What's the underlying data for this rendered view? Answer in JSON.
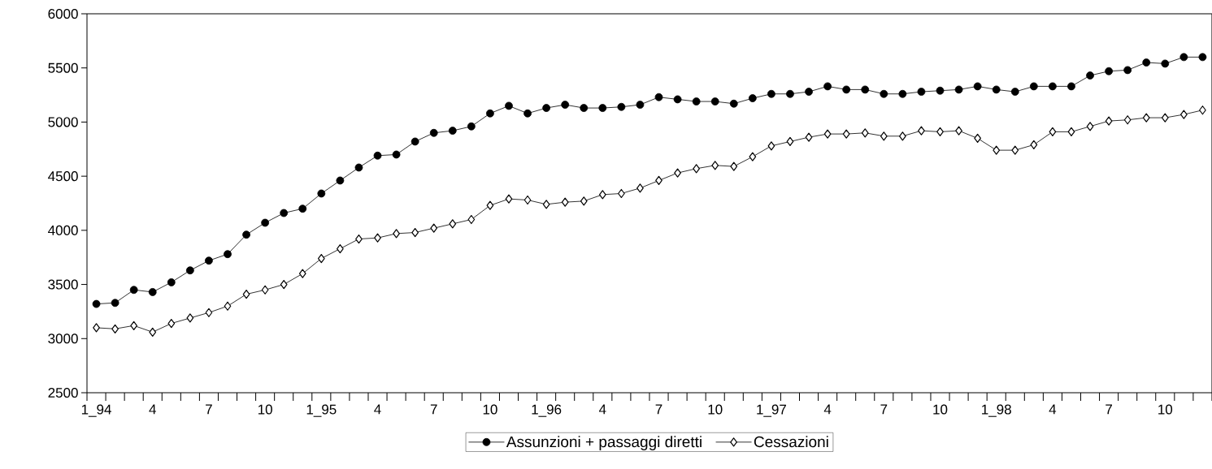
{
  "chart_data": {
    "type": "line",
    "categories": [
      "1_94",
      null,
      null,
      "4",
      null,
      null,
      "7",
      null,
      null,
      "10",
      null,
      null,
      "1_95",
      null,
      null,
      "4",
      null,
      null,
      "7",
      null,
      null,
      "10",
      null,
      null,
      "1_96",
      null,
      null,
      "4",
      null,
      null,
      "7",
      null,
      null,
      "10",
      null,
      null,
      "1_97",
      null,
      null,
      "4",
      null,
      null,
      "7",
      null,
      null,
      "10",
      null,
      null,
      "1_98",
      null,
      null,
      "4",
      null,
      null,
      "7",
      null,
      null,
      "10",
      null,
      null
    ],
    "series": [
      {
        "name": "Assunzioni + passaggi diretti",
        "color": "#000000",
        "marker": "circle",
        "values": [
          3320,
          3330,
          3450,
          3430,
          3520,
          3630,
          3720,
          3780,
          3960,
          4070,
          4160,
          4200,
          4340,
          4460,
          4580,
          4690,
          4700,
          4820,
          4900,
          4920,
          4960,
          5080,
          5150,
          5080,
          5130,
          5160,
          5130,
          5130,
          5140,
          5160,
          5230,
          5210,
          5190,
          5190,
          5170,
          5220,
          5260,
          5260,
          5280,
          5330,
          5300,
          5300,
          5260,
          5260,
          5280,
          5290,
          5300,
          5330,
          5300,
          5280,
          5330,
          5330,
          5330,
          5430,
          5470,
          5480,
          5550,
          5540,
          5600,
          5600
        ]
      },
      {
        "name": "Cessazioni",
        "color": "#000000",
        "marker": "diamond",
        "values": [
          3100,
          3090,
          3120,
          3060,
          3140,
          3190,
          3240,
          3300,
          3410,
          3450,
          3500,
          3600,
          3740,
          3830,
          3920,
          3930,
          3970,
          3980,
          4020,
          4060,
          4100,
          4230,
          4290,
          4280,
          4240,
          4260,
          4270,
          4330,
          4340,
          4390,
          4460,
          4530,
          4570,
          4600,
          4590,
          4680,
          4780,
          4820,
          4860,
          4890,
          4890,
          4900,
          4870,
          4870,
          4920,
          4910,
          4920,
          4850,
          4740,
          4740,
          4790,
          4910,
          4910,
          4960,
          5010,
          5020,
          5040,
          5040,
          5070,
          5110
        ]
      }
    ],
    "ylim": [
      2500,
      6000
    ],
    "yticks": [
      2500,
      3000,
      3500,
      4000,
      4500,
      5000,
      5500,
      6000
    ],
    "grid": false,
    "legend": "bottom"
  }
}
